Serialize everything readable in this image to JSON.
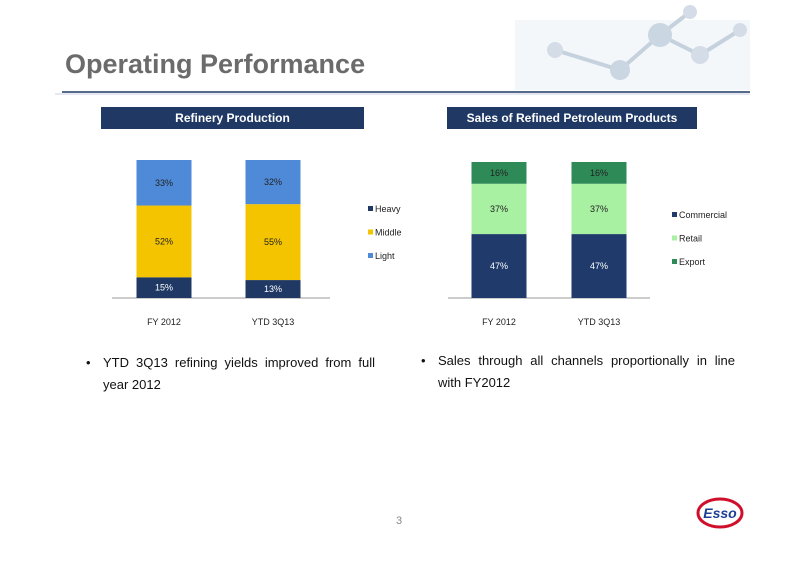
{
  "slide": {
    "title": "Operating Performance",
    "page_number": "3",
    "logo": "Esso"
  },
  "chart_data": [
    {
      "type": "bar",
      "stacked": true,
      "title": "Refinery Production",
      "categories": [
        "FY 2012",
        "YTD 3Q13"
      ],
      "ylim": [
        0,
        100
      ],
      "series": [
        {
          "name": "Heavy",
          "color": "#1f3864",
          "values": [
            15,
            13
          ],
          "value_labels": [
            "15%",
            "13%"
          ]
        },
        {
          "name": "Middle",
          "color": "#f5c400",
          "values": [
            52,
            55
          ],
          "value_labels": [
            "52%",
            "55%"
          ]
        },
        {
          "name": "Light",
          "color": "#4f8ad8",
          "values": [
            33,
            32
          ],
          "value_labels": [
            "33%",
            "32%"
          ]
        }
      ]
    },
    {
      "type": "bar",
      "stacked": true,
      "title": "Sales of Refined Petroleum Products",
      "categories": [
        "FY 2012",
        "YTD 3Q13"
      ],
      "ylim": [
        0,
        100
      ],
      "series": [
        {
          "name": "Commercial",
          "color": "#1f3a6b",
          "values": [
            47,
            47
          ],
          "value_labels": [
            "47%",
            "47%"
          ]
        },
        {
          "name": "Retail",
          "color": "#a8f0a2",
          "values": [
            37,
            37
          ],
          "value_labels": [
            "37%",
            "37%"
          ]
        },
        {
          "name": "Export",
          "color": "#2e8b57",
          "values": [
            16,
            16
          ],
          "value_labels": [
            "16%",
            "16%"
          ]
        }
      ]
    }
  ],
  "bullets": [
    "YTD 3Q13 refining yields improved from full year 2012",
    "Sales through all channels proportionally in line with FY2012"
  ]
}
